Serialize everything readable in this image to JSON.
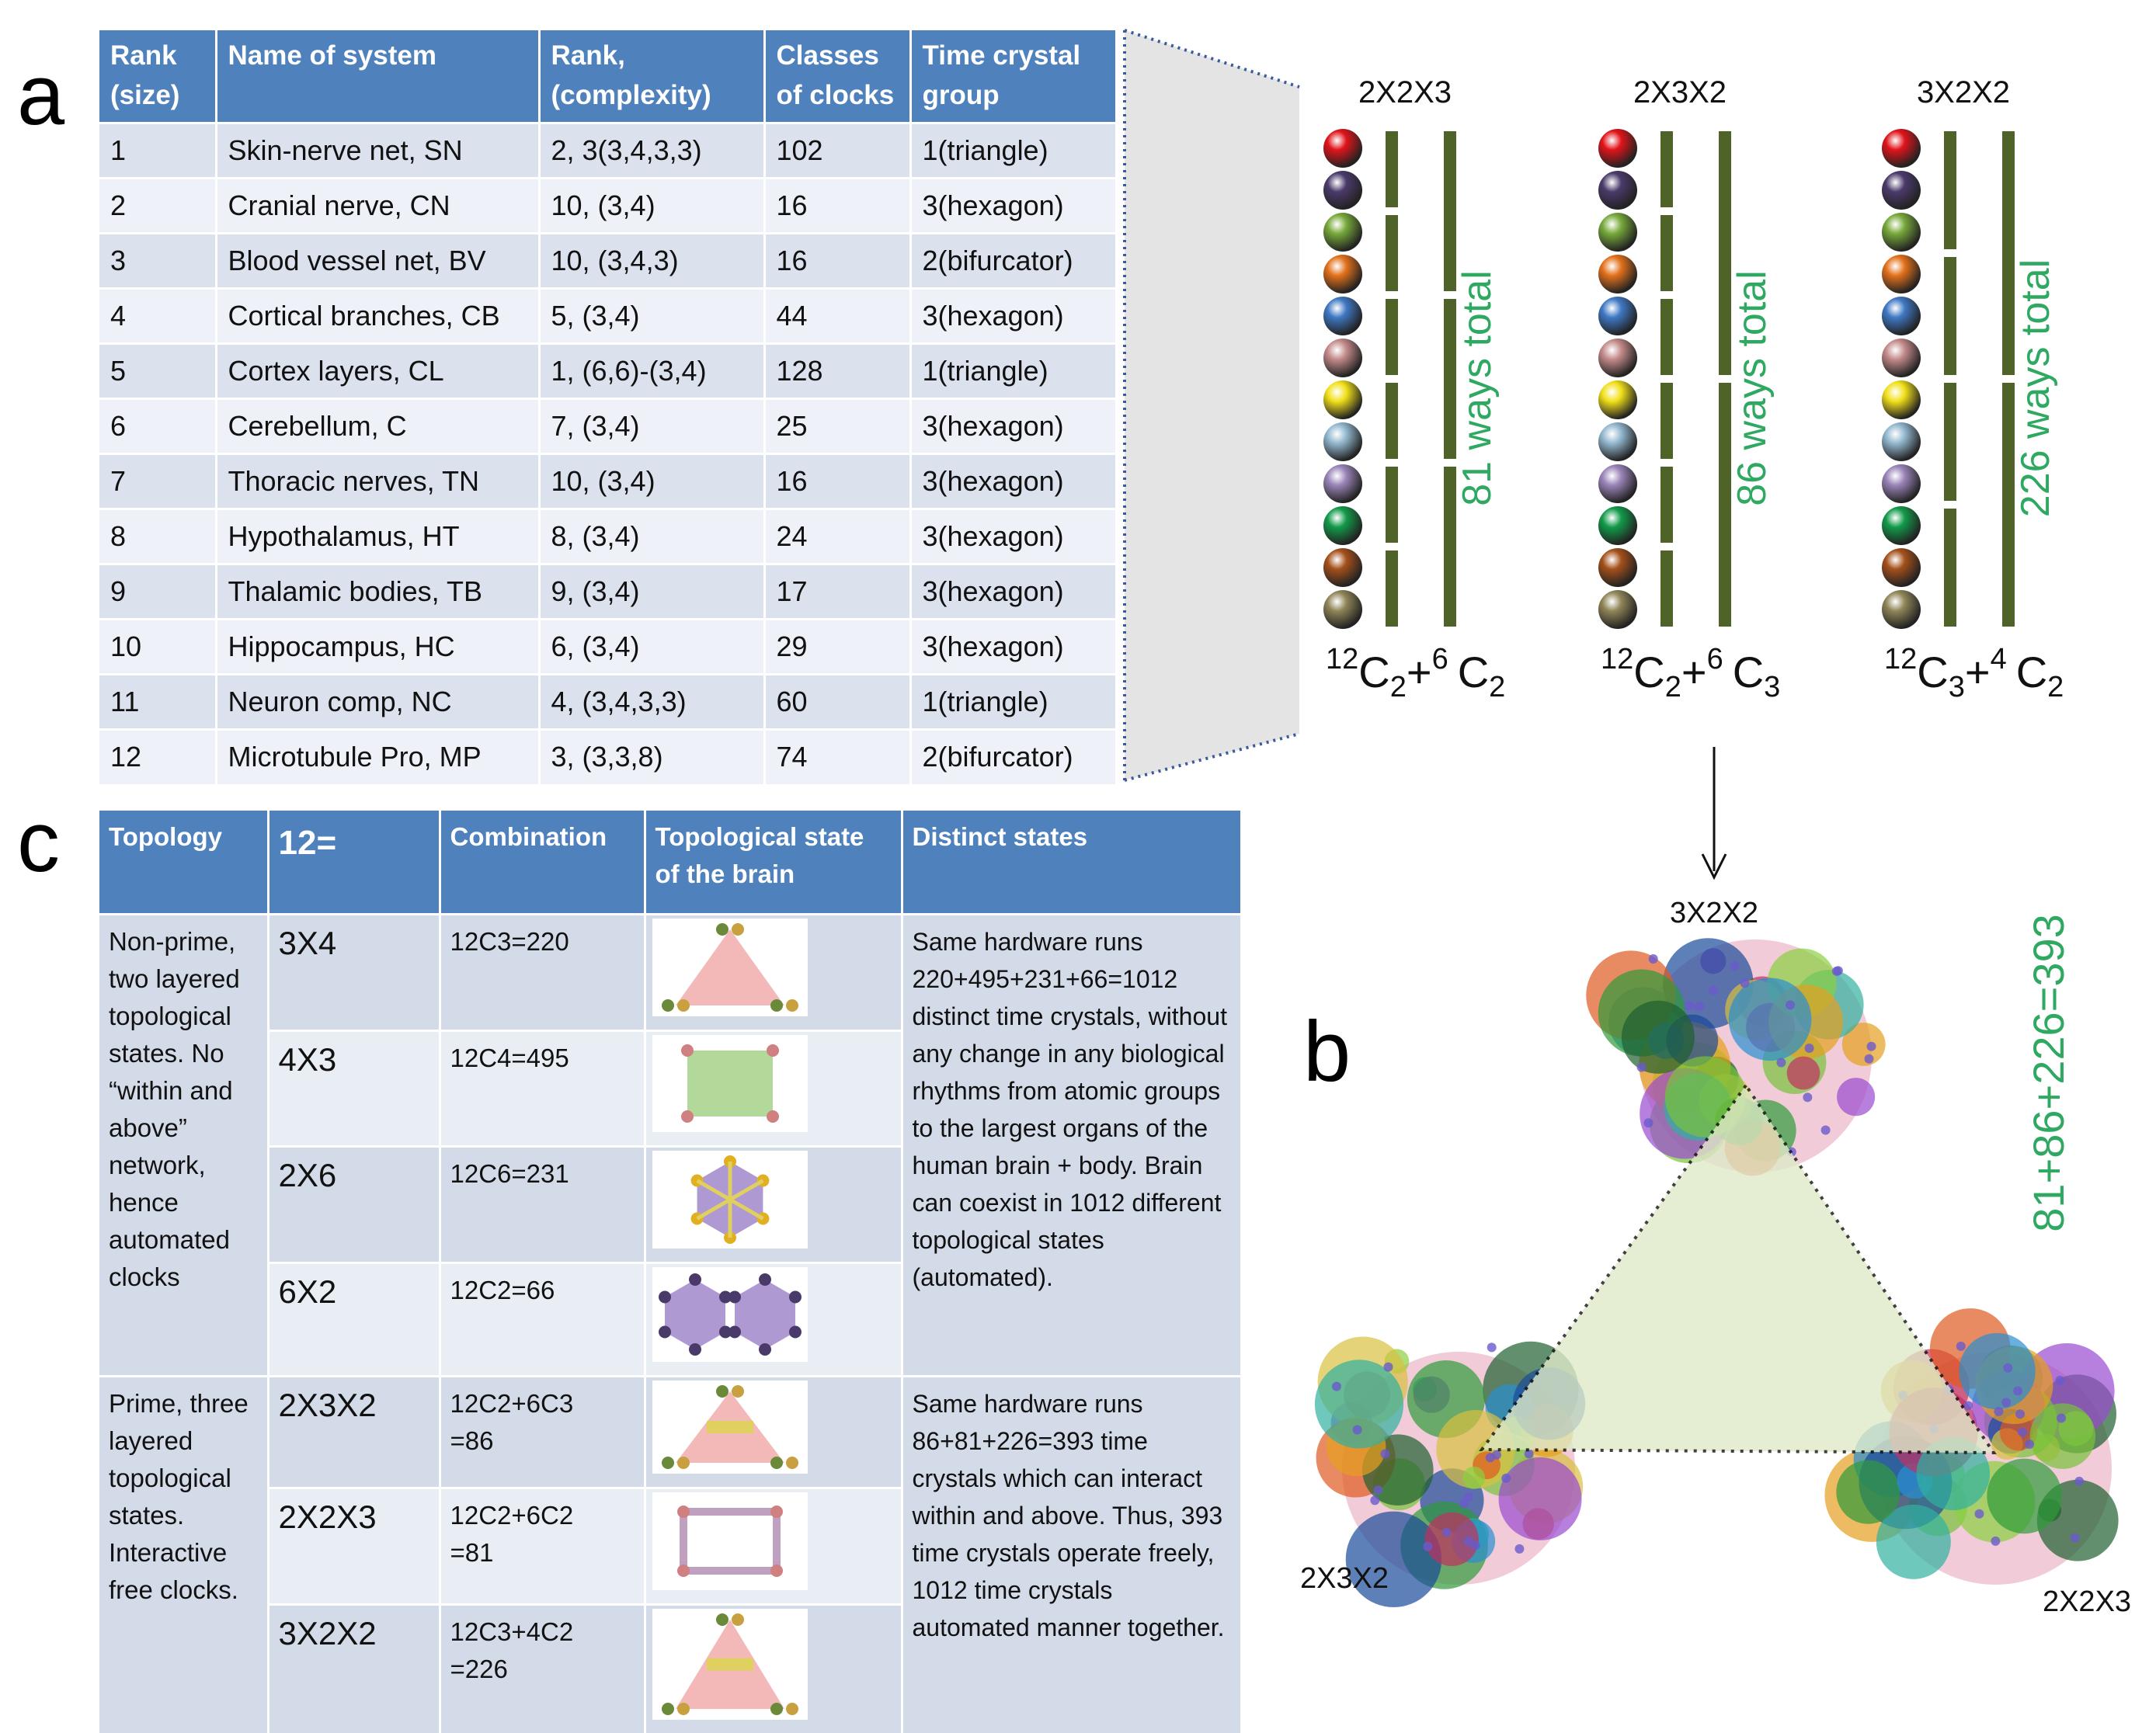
{
  "panel_labels": [
    "a",
    "b",
    "c"
  ],
  "table_a": {
    "header": [
      "Rank\n(size)",
      "Name of system",
      "Rank,\n(complexity)",
      "Classes\nof clocks",
      "Time crystal\ngroup"
    ],
    "rows": [
      [
        "1",
        "Skin-nerve net, SN",
        "2, 3(3,4,3,3)",
        "102",
        "1(triangle)"
      ],
      [
        "2",
        "Cranial nerve, CN",
        "10, (3,4)",
        "16",
        "3(hexagon)"
      ],
      [
        "3",
        "Blood vessel net, BV",
        "10, (3,4,3)",
        "16",
        "2(bifurcator)"
      ],
      [
        "4",
        "Cortical branches, CB",
        "5, (3,4)",
        "44",
        "3(hexagon)"
      ],
      [
        "5",
        "Cortex layers, CL",
        "1, (6,6)-(3,4)",
        "128",
        "1(triangle)"
      ],
      [
        "6",
        "Cerebellum, C",
        "7, (3,4)",
        "25",
        "3(hexagon)"
      ],
      [
        "7",
        "Thoracic nerves, TN",
        "10, (3,4)",
        "16",
        "3(hexagon)"
      ],
      [
        "8",
        "Hypothalamus, HT",
        "8, (3,4)",
        "24",
        "3(hexagon)"
      ],
      [
        "9",
        "Thalamic bodies, TB",
        "9, (3,4)",
        "17",
        "3(hexagon)"
      ],
      [
        "10",
        "Hippocampus, HC",
        "6, (3,4)",
        "29",
        "3(hexagon)"
      ],
      [
        "11",
        "Neuron comp, NC",
        "4, (3,4,3,3)",
        "60",
        "1(triangle)"
      ],
      [
        "12",
        "Microtubule Pro, MP",
        "3, (3,3,8)",
        "74",
        "2(bifurcator)"
      ]
    ]
  },
  "clocks": [
    {
      "label": "2X2X3",
      "ways": "81 ways total",
      "formula": [
        "12",
        "C",
        "2",
        "+",
        "6",
        "C",
        "2"
      ]
    },
    {
      "label": "2X3X2",
      "ways": "86 ways total",
      "formula": [
        "12",
        "C",
        "2",
        "+",
        "6",
        "C",
        "3"
      ]
    },
    {
      "label": "3X2X2",
      "ways": "226 ways total",
      "formula": [
        "12",
        "C",
        "3",
        "+",
        "4",
        "C",
        "2"
      ]
    }
  ],
  "network": {
    "top": "3X2X2",
    "left": "2X3X2",
    "right": "2X2X3",
    "sum": "81+86+226=393"
  },
  "table_c": {
    "header": [
      "Topology",
      "12=",
      "Combination",
      "Topological state\nof the brain",
      "Distinct states"
    ],
    "groups": [
      {
        "topology": "Non-prime, two layered topological states. No “within and above” network, hence automated clocks",
        "rows": [
          [
            "3X4",
            "12C3=220"
          ],
          [
            "4X3",
            "12C4=495"
          ],
          [
            "2X6",
            "12C6=231"
          ],
          [
            "6X2",
            "12C2=66"
          ]
        ],
        "distinct": "Same hardware runs 220+495+231+66=1012 distinct time crystals, without any change in any biological rhythms from atomic groups to the largest organs of the human brain + body. Brain can coexist in 1012 different topological states (automated)."
      },
      {
        "topology": "Prime, three layered topological states. Interactive free clocks.",
        "rows": [
          [
            "2X3X2",
            "12C2+6C3\n=86"
          ],
          [
            "2X2X3",
            "12C2+6C2\n=81"
          ],
          [
            "3X2X2",
            "12C3+4C2\n=226"
          ]
        ],
        "distinct": "Same hardware runs 86+81+226=393 time crystals which can interact within and above. Thus, 393 time crystals operate freely, 1012 time crystals automated manner together."
      }
    ]
  }
}
